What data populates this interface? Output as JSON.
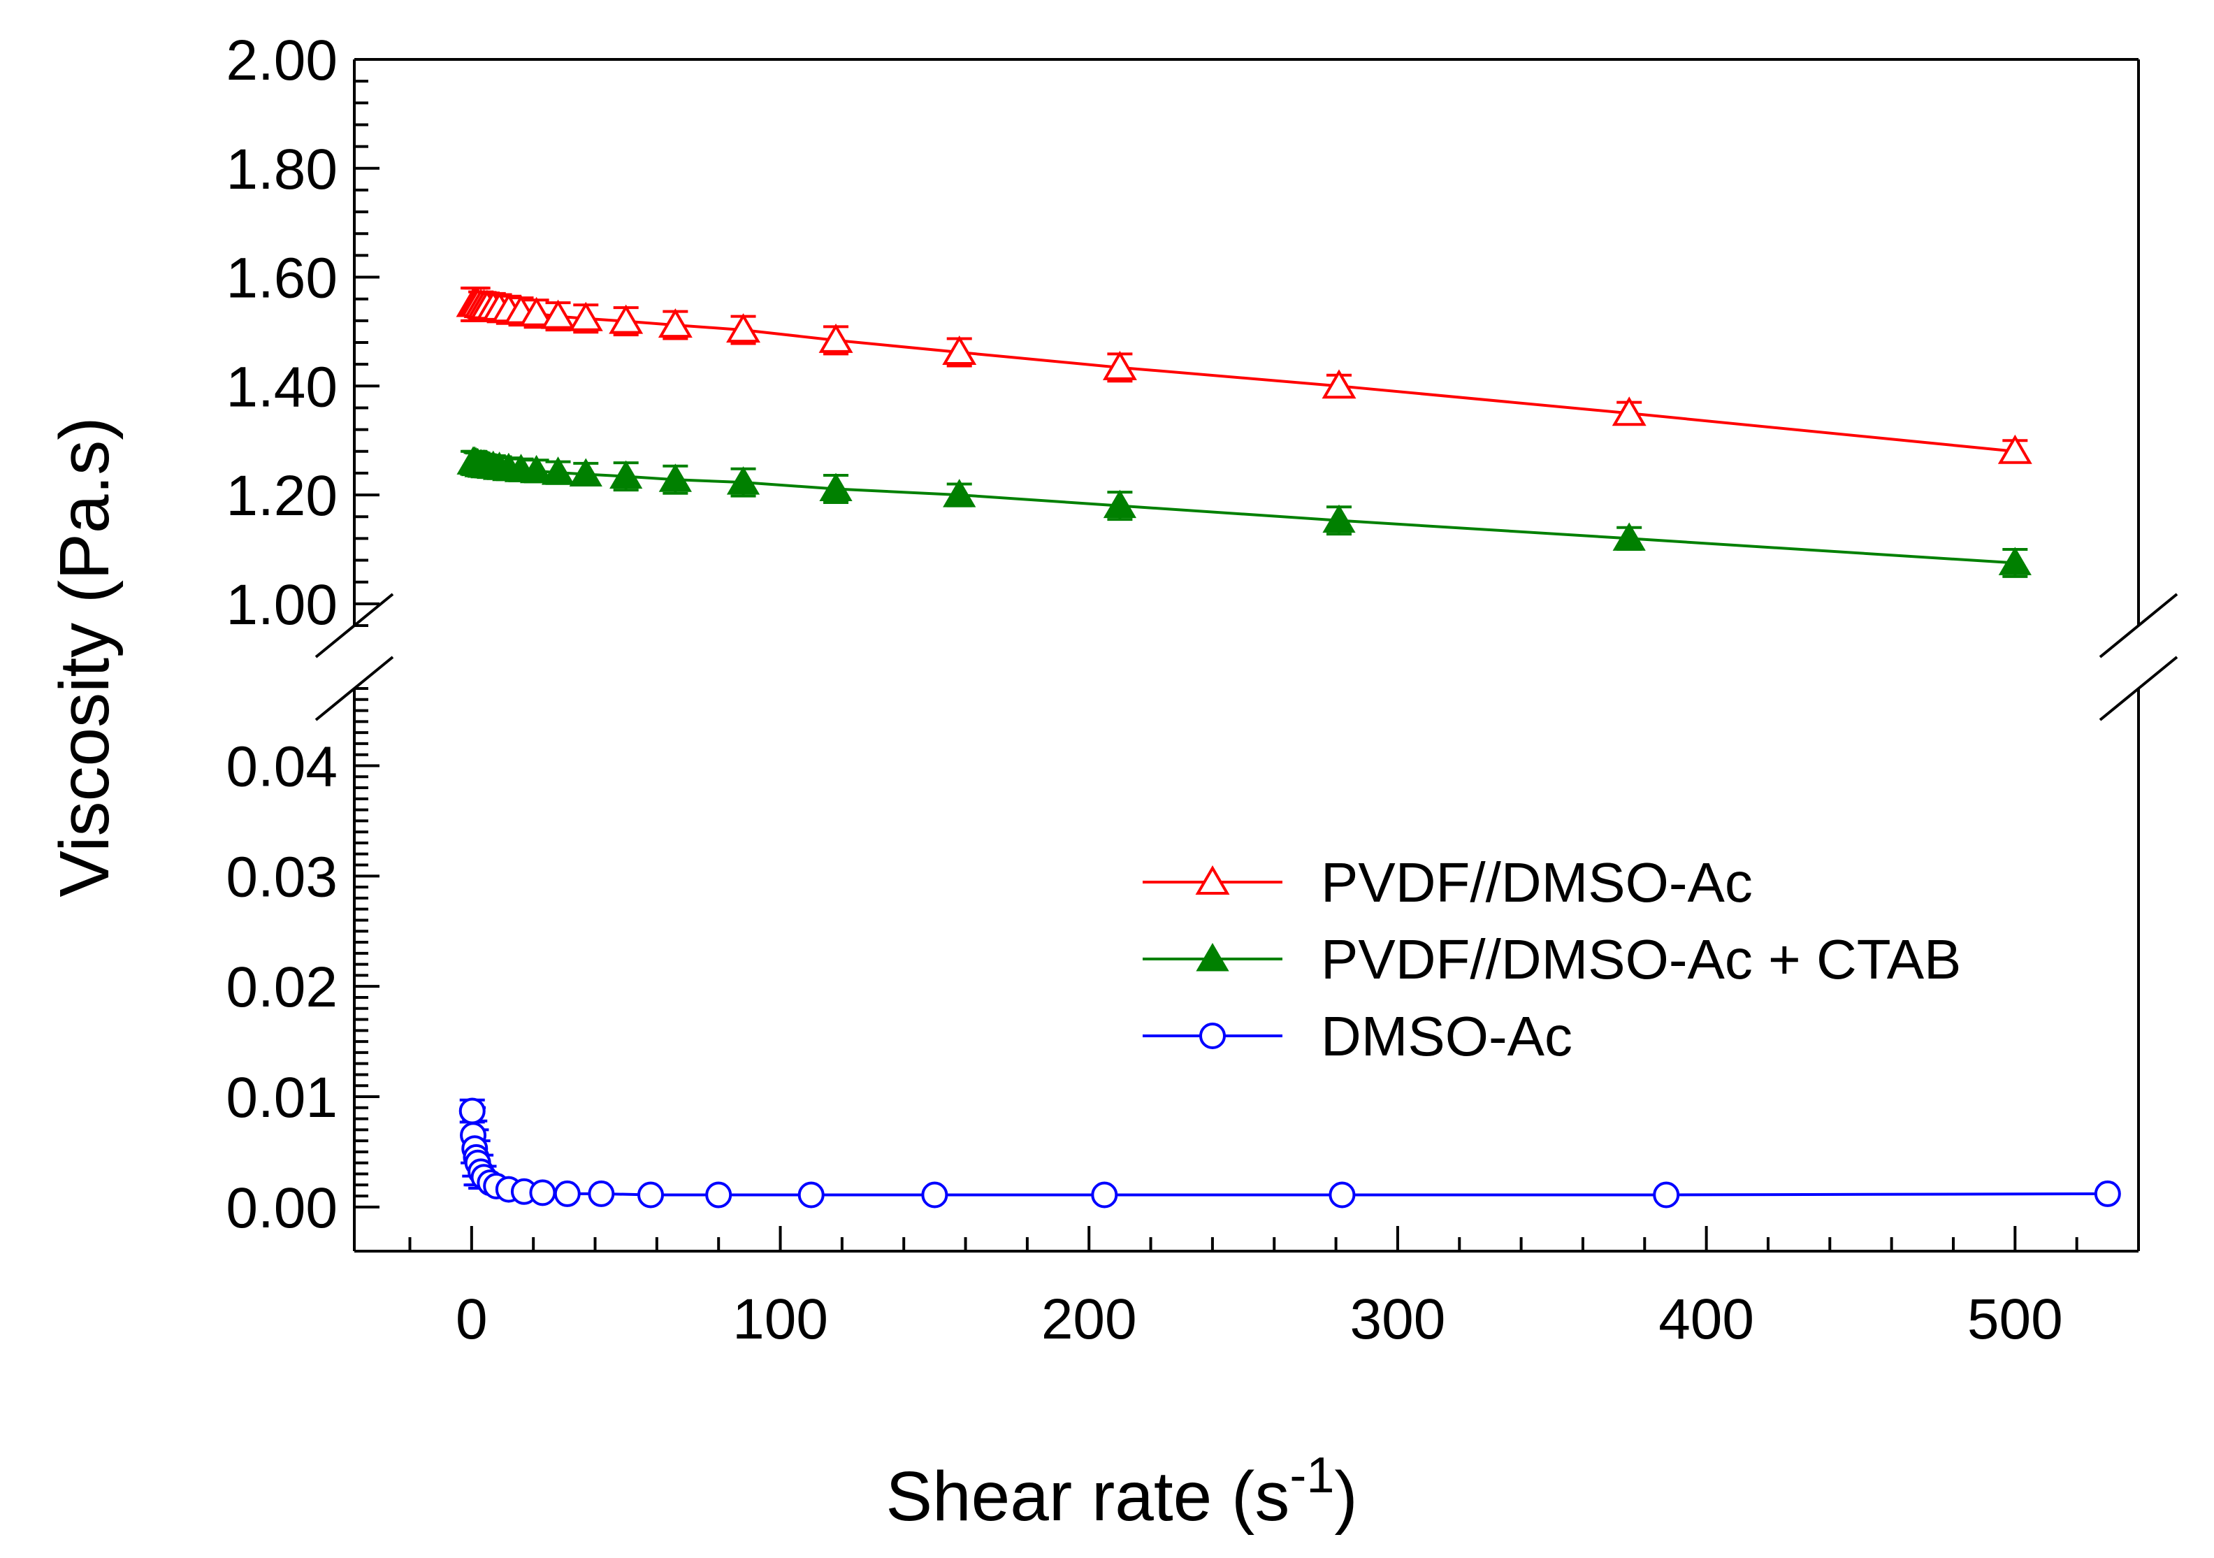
{
  "chart_data": {
    "type": "line",
    "xlabel": "Shear rate (s",
    "xlabel_superscript": "-1",
    "xlabel_close": ")",
    "ylabel": "Viscosity (Pa.s)",
    "xlim": [
      -38,
      540
    ],
    "x_ticks": [
      "0",
      "100",
      "200",
      "300",
      "400",
      "500"
    ],
    "y_break": true,
    "upper_panel": {
      "ylim": [
        0.96,
        2.0
      ],
      "y_ticks": [
        "1.00",
        "1.20",
        "1.40",
        "1.60",
        "1.80",
        "2.00"
      ]
    },
    "lower_panel": {
      "ylim": [
        -0.004,
        0.047
      ],
      "y_ticks": [
        "0.00",
        "0.01",
        "0.02",
        "0.03",
        "0.04"
      ]
    },
    "legend_position": "center-right",
    "series": [
      {
        "name": "PVDF//DMSO-Ac",
        "color": "#ff0000",
        "marker": "triangle-open",
        "panel": "upper",
        "x": [
          0.5,
          1,
          1.5,
          2,
          3,
          4,
          5,
          7,
          9,
          12,
          16,
          21,
          28,
          37,
          50,
          66,
          88,
          118,
          158,
          210,
          281,
          375,
          500
        ],
        "y": [
          1.55,
          1.55,
          1.55,
          1.55,
          1.548,
          1.547,
          1.546,
          1.545,
          1.543,
          1.54,
          1.537,
          1.533,
          1.528,
          1.524,
          1.519,
          1.512,
          1.503,
          1.484,
          1.462,
          1.434,
          1.4,
          1.35,
          1.28
        ],
        "yerr": [
          0.03,
          0.03,
          0.03,
          0.03,
          0.025,
          0.025,
          0.025,
          0.025,
          0.025,
          0.025,
          0.025,
          0.025,
          0.025,
          0.025,
          0.025,
          0.025,
          0.025,
          0.025,
          0.025,
          0.025,
          0.02,
          0.02,
          0.02
        ]
      },
      {
        "name": "PVDF//DMSO-Ac + CTAB",
        "color": "#008000",
        "marker": "triangle-filled",
        "panel": "upper",
        "x": [
          0.5,
          1,
          1.5,
          2,
          3,
          4,
          5,
          7,
          9,
          12,
          16,
          21,
          28,
          37,
          50,
          66,
          88,
          118,
          158,
          210,
          281,
          375,
          500
        ],
        "y": [
          1.26,
          1.26,
          1.258,
          1.257,
          1.255,
          1.254,
          1.253,
          1.252,
          1.25,
          1.248,
          1.246,
          1.244,
          1.241,
          1.238,
          1.234,
          1.228,
          1.223,
          1.211,
          1.2,
          1.18,
          1.153,
          1.12,
          1.075
        ],
        "yerr": [
          0.02,
          0.02,
          0.02,
          0.02,
          0.02,
          0.02,
          0.02,
          0.02,
          0.02,
          0.02,
          0.02,
          0.02,
          0.02,
          0.02,
          0.025,
          0.025,
          0.025,
          0.025,
          0.02,
          0.025,
          0.025,
          0.02,
          0.025
        ]
      },
      {
        "name": "DMSO-Ac",
        "color": "#0000ff",
        "marker": "circle-open",
        "panel": "lower",
        "x": [
          0.2,
          0.5,
          1,
          1.5,
          2,
          3,
          4,
          6,
          8,
          12,
          17,
          23,
          31,
          42,
          58,
          80,
          110,
          150,
          205,
          282,
          387,
          530
        ],
        "y": [
          0.0087,
          0.0065,
          0.0053,
          0.0045,
          0.004,
          0.0032,
          0.0027,
          0.0022,
          0.0019,
          0.0016,
          0.0014,
          0.0013,
          0.0012,
          0.0012,
          0.0011,
          0.0011,
          0.0011,
          0.0011,
          0.0011,
          0.0011,
          0.0011,
          0.0012
        ],
        "yerr": [
          0.001,
          0.0025,
          0.0025,
          0.0025,
          0.002,
          0.0015,
          0.001,
          0.0005,
          0.0003,
          0.0002,
          0.0002,
          0.0002,
          0.0001,
          0.0001,
          0.0001,
          0.0001,
          0.0001,
          0.0001,
          0.0001,
          0.0001,
          0.0001,
          0.0001
        ]
      }
    ]
  }
}
